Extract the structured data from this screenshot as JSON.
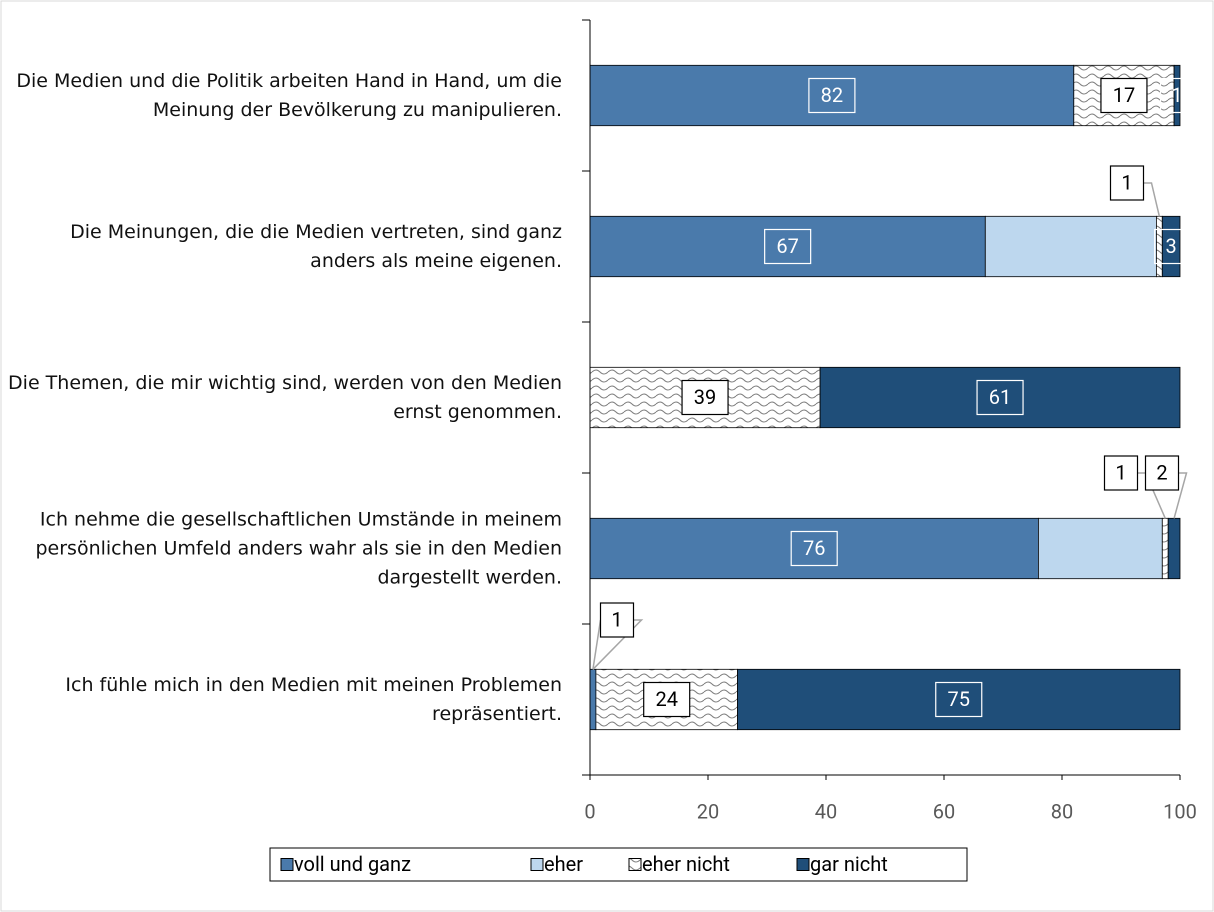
{
  "chart_data": {
    "type": "stacked-bar-horizontal",
    "categories": [
      "Die Medien und die Politik arbeiten Hand in Hand, um die Meinung der Bevölkerung zu manipulieren.",
      "Die Meinungen, die die Medien vertreten, sind ganz anders als meine eigenen.",
      "Die Themen, die mir wichtig sind, werden von den Medien ernst genommen.",
      "Ich nehme die gesellschaftlichen Umstände in meinem persönlichen Umfeld anders wahr als sie in den Medien dargestellt werden.",
      "Ich fühle mich in den Medien mit meinen Problemen repräsentiert."
    ],
    "series": [
      {
        "name": "voll und ganz",
        "color": "#4a7aab",
        "values": [
          82,
          67,
          0,
          76,
          1
        ]
      },
      {
        "name": "eher",
        "color": "#bdd7ee",
        "values": [
          0,
          29,
          0,
          21,
          0
        ],
        "show_labels": false
      },
      {
        "name": "eher nicht",
        "color": "#808080",
        "pattern": "wave",
        "values": [
          17,
          1,
          39,
          1,
          24
        ]
      },
      {
        "name": "gar nicht",
        "color": "#1f4e79",
        "values": [
          1,
          3,
          61,
          2,
          75
        ]
      }
    ],
    "xlim": [
      0,
      100
    ],
    "xticks": [
      0,
      20,
      40,
      60,
      80,
      100
    ],
    "legend": "bottom"
  }
}
